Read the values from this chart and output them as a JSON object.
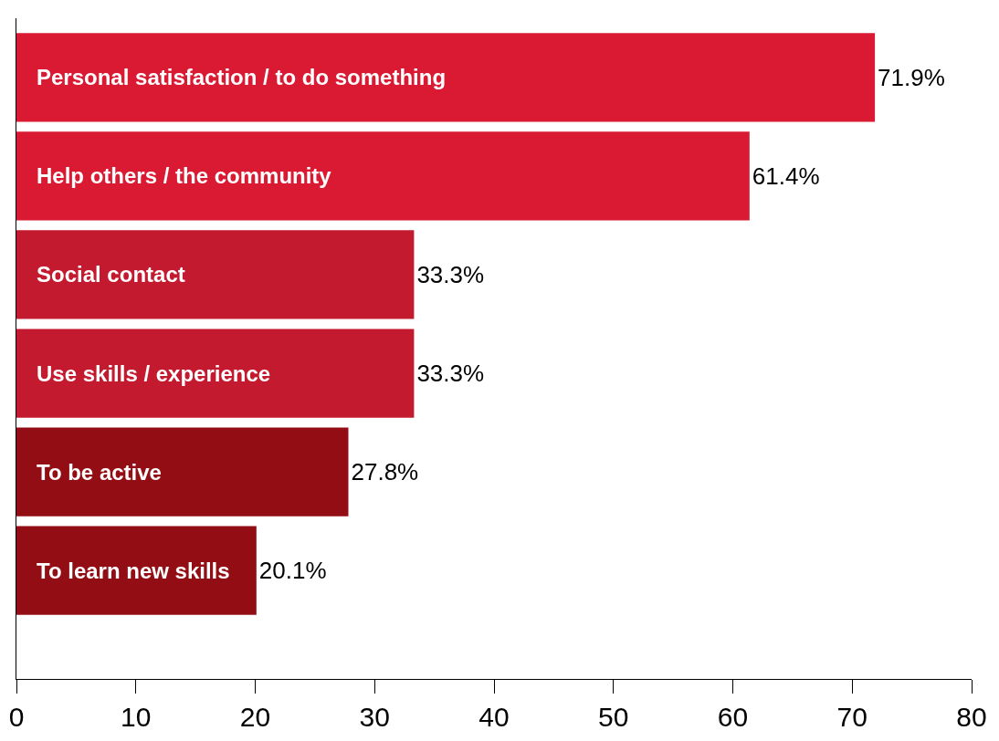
{
  "chart_data": {
    "type": "bar",
    "orientation": "horizontal",
    "categories": [
      "Personal satisfaction / to do something",
      "Help others / the community",
      "Social contact",
      "Use skills / experience",
      "To be active",
      "To learn new skills"
    ],
    "values": [
      71.9,
      61.4,
      33.3,
      33.3,
      27.8,
      20.1
    ],
    "value_labels": [
      "71.9%",
      "61.4%",
      "33.3%",
      "33.3%",
      "27.8%",
      "20.1%"
    ],
    "colors": [
      "#d91a32",
      "#d91a32",
      "#c41a2f",
      "#c41a2f",
      "#920e14",
      "#920e14"
    ],
    "xlim": [
      0,
      80
    ],
    "xticks": [
      0,
      10,
      20,
      30,
      40,
      50,
      60,
      70,
      80
    ],
    "legend": false
  }
}
